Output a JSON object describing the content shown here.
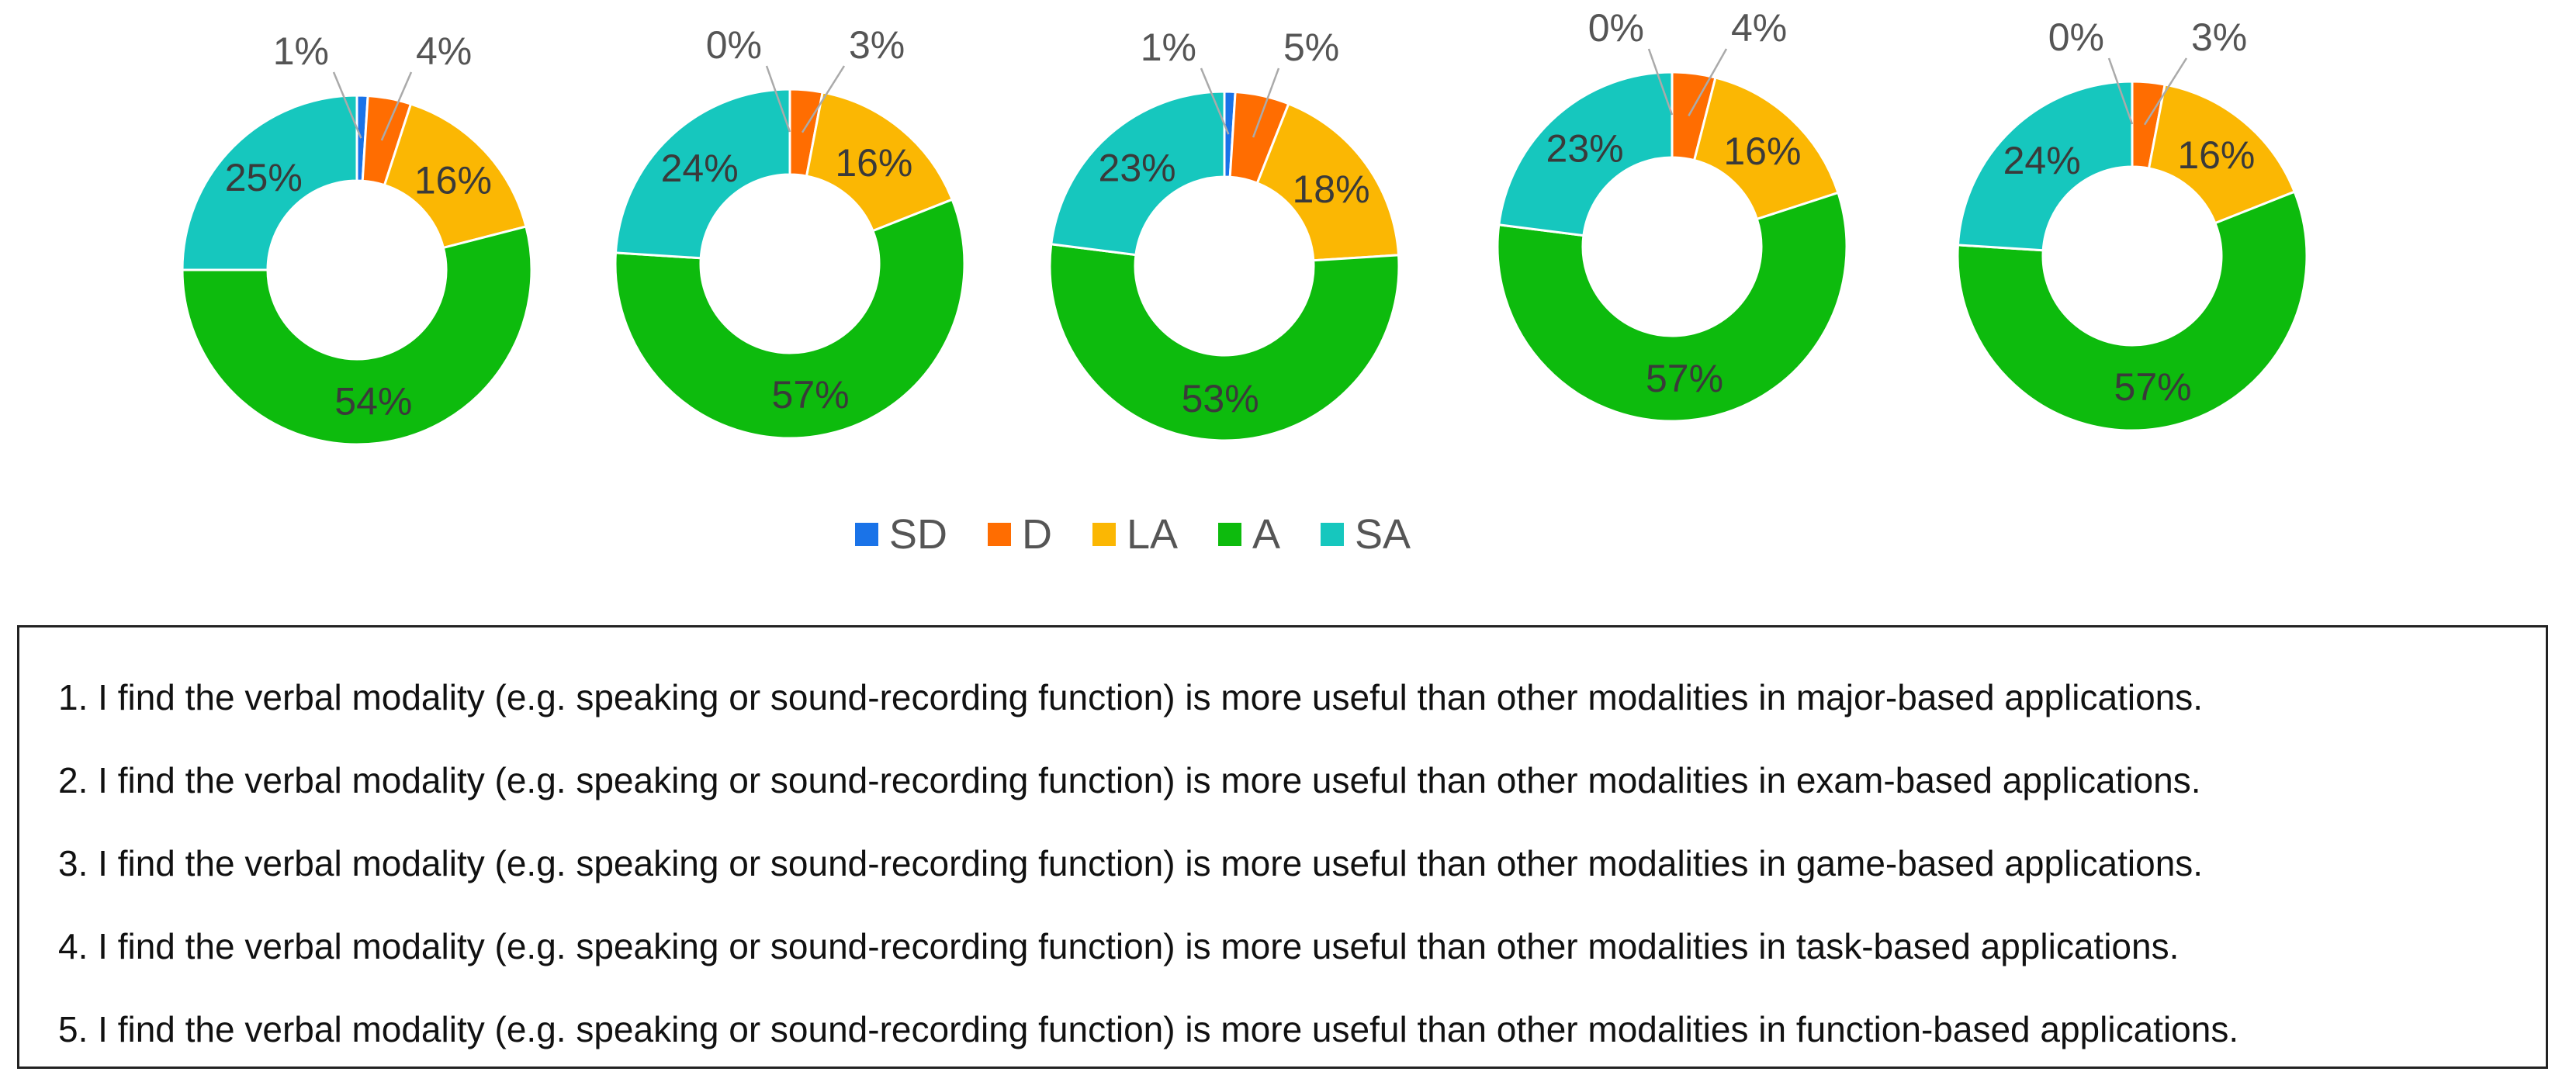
{
  "chart_data": [
    {
      "type": "pie",
      "categories": [
        "SD",
        "D",
        "LA",
        "A",
        "SA"
      ],
      "values": [
        1,
        4,
        16,
        54,
        25
      ],
      "data_labels": [
        "1%",
        "4%",
        "16%",
        "54%",
        "25%"
      ]
    },
    {
      "type": "pie",
      "categories": [
        "SD",
        "D",
        "LA",
        "A",
        "SA"
      ],
      "values": [
        0,
        3,
        16,
        57,
        24
      ],
      "data_labels": [
        "0%",
        "3%",
        "16%",
        "57%",
        "24%"
      ]
    },
    {
      "type": "pie",
      "categories": [
        "SD",
        "D",
        "LA",
        "A",
        "SA"
      ],
      "values": [
        1,
        5,
        18,
        53,
        23
      ],
      "data_labels": [
        "1%",
        "5%",
        "18%",
        "53%",
        "23%"
      ]
    },
    {
      "type": "pie",
      "categories": [
        "SD",
        "D",
        "LA",
        "A",
        "SA"
      ],
      "values": [
        0,
        4,
        16,
        57,
        23
      ],
      "data_labels": [
        "0%",
        "4%",
        "16%",
        "57%",
        "23%"
      ]
    },
    {
      "type": "pie",
      "categories": [
        "SD",
        "D",
        "LA",
        "A",
        "SA"
      ],
      "values": [
        0,
        3,
        16,
        57,
        24
      ],
      "data_labels": [
        "0%",
        "3%",
        "16%",
        "57%",
        "24%"
      ]
    }
  ],
  "legend": {
    "placement": "bottom",
    "items": [
      {
        "label": "SD",
        "color": "#1a73e8"
      },
      {
        "label": "D",
        "color": "#ff6d01"
      },
      {
        "label": "LA",
        "color": "#fbb703"
      },
      {
        "label": "A",
        "color": "#0dbb0d"
      },
      {
        "label": "SA",
        "color": "#16c7be"
      }
    ]
  },
  "statements": [
    "1.  I find the verbal modality (e.g. speaking or sound-recording function) is more useful than other modalities in major-based applications.",
    "2.  I find the verbal modality (e.g. speaking or sound-recording function) is more useful than other modalities in exam-based applications.",
    "3.  I find the verbal modality (e.g. speaking or sound-recording function) is more useful than other modalities in game-based applications.",
    "4.  I find the verbal modality (e.g. speaking or sound-recording function) is more useful than other modalities in task-based applications.",
    "5.  I find the verbal modality (e.g. speaking or sound-recording function) is more useful than other modalities in function-based applications."
  ]
}
